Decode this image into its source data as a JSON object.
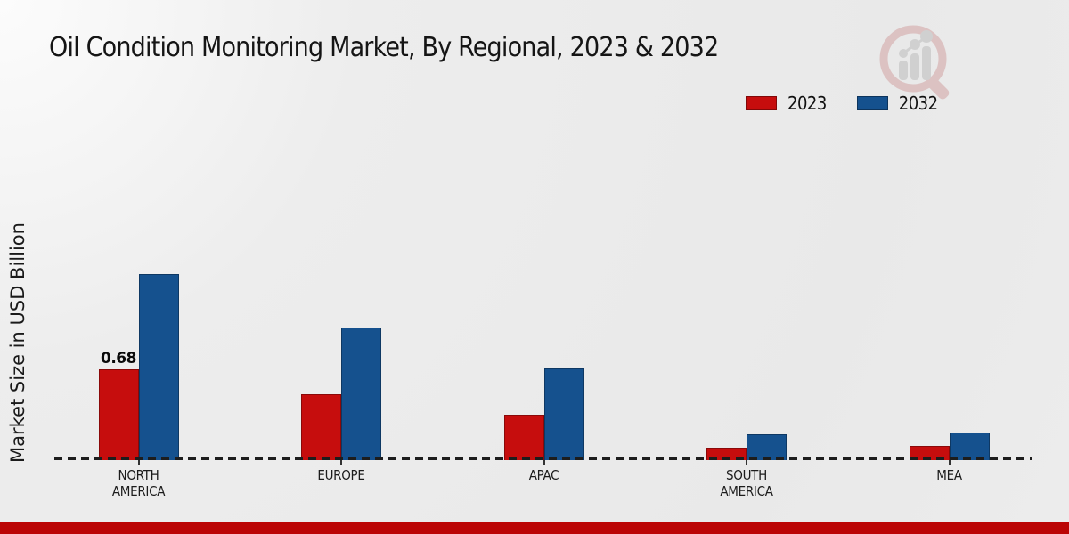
{
  "header": {
    "title": "Oil Condition Monitoring Market, By Regional, 2023 & 2032"
  },
  "watermark_icon": "magnifier-growth-bars-logo",
  "footer": {
    "accent_color": "#bb0505"
  },
  "chart_data": {
    "type": "bar",
    "title": "Oil Condition Monitoring Market, By Regional, 2023 & 2032",
    "xlabel": "",
    "ylabel": "Market Size in USD Billion",
    "categories": [
      "NORTH AMERICA",
      "EUROPE",
      "APAC",
      "SOUTH AMERICA",
      "MEA"
    ],
    "category_lines": [
      [
        "NORTH",
        "AMERICA"
      ],
      [
        "EUROPE"
      ],
      [
        "APAC"
      ],
      [
        "SOUTH",
        "AMERICA"
      ],
      [
        "MEA"
      ]
    ],
    "series": [
      {
        "name": "2023",
        "color": "#c60d0d",
        "values": [
          0.68,
          0.49,
          0.34,
          0.09,
          0.1
        ]
      },
      {
        "name": "2032",
        "color": "#15518e",
        "values": [
          1.4,
          1.0,
          0.69,
          0.19,
          0.2
        ]
      }
    ],
    "bar_labels": [
      [
        "0.68",
        "",
        "",
        "",
        ""
      ],
      [
        "",
        "",
        "",
        "",
        ""
      ]
    ],
    "ylim": [
      0,
      1.5
    ],
    "grid": false,
    "legend_position": "top-right",
    "axis_line_style": "dashed",
    "y_axis_visible": false
  }
}
